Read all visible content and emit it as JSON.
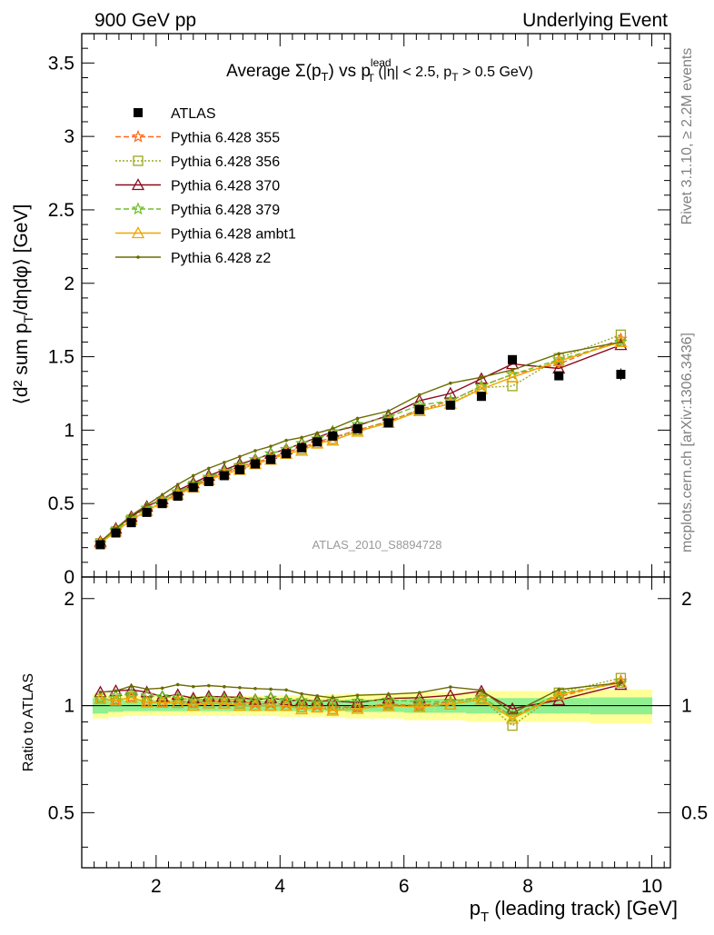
{
  "header": {
    "left": "900 GeV pp",
    "right": "Underlying Event"
  },
  "side_labels": {
    "rivet": "Rivet 3.1.10, ≥ 2.2M events",
    "mcplots": "mcplots.cern.ch [arXiv:1306.3436]"
  },
  "analysis_label": "ATLAS_2010_S8894728",
  "colors": {
    "data": "#000000",
    "p355": "#ff6a1a",
    "p356": "#9aa81a",
    "p370": "#8b0a1e",
    "p379": "#6fbf2a",
    "ambt1": "#f2a400",
    "z2": "#6b6b00",
    "band_inner": "#90f090",
    "band_outer": "#ffff99"
  },
  "chart_data": {
    "type": "line",
    "title_parts": {
      "main": "Average Σ(p",
      "sub_T": "T",
      "mid": ") vs p",
      "sup_lead": "lead",
      "tail": " (|η| < 2.5, p",
      "tail_sub": "T",
      "tail_end": " > 0.5 GeV)"
    },
    "ylabel_main": "⟨d² sum p",
    "ylabel_sub": "T",
    "ylabel_end": "/dηdφ⟩ [GeV]",
    "ylabel_ratio": "Ratio to ATLAS",
    "xlabel_main": "p",
    "xlabel_sub": "T",
    "xlabel_end": " (leading track) [GeV]",
    "xlim": [
      0.8,
      10.3
    ],
    "ylim_main": [
      0,
      3.7
    ],
    "ylim_ratio": [
      0.35,
      2.3
    ],
    "xticks": [
      "2",
      "4",
      "6",
      "8",
      "10"
    ],
    "yticks_main": [
      "0",
      "0.5",
      "1",
      "1.5",
      "2",
      "2.5",
      "3",
      "3.5"
    ],
    "yticks_ratio": [
      "0.5",
      "1",
      "2"
    ],
    "x": [
      1.1,
      1.35,
      1.6,
      1.85,
      2.1,
      2.35,
      2.6,
      2.85,
      3.1,
      3.35,
      3.6,
      3.85,
      4.1,
      4.35,
      4.6,
      4.85,
      5.25,
      5.75,
      6.25,
      6.75,
      7.25,
      7.75,
      8.5,
      9.5
    ],
    "data": {
      "name": "ATLAS",
      "values": [
        0.22,
        0.3,
        0.37,
        0.44,
        0.5,
        0.55,
        0.61,
        0.65,
        0.69,
        0.73,
        0.77,
        0.8,
        0.84,
        0.88,
        0.92,
        0.96,
        1.01,
        1.05,
        1.14,
        1.17,
        1.23,
        1.48,
        1.37,
        1.38
      ],
      "errors": [
        0.01,
        0.01,
        0.01,
        0.01,
        0.01,
        0.01,
        0.01,
        0.01,
        0.01,
        0.01,
        0.01,
        0.01,
        0.01,
        0.01,
        0.01,
        0.01,
        0.015,
        0.015,
        0.02,
        0.02,
        0.025,
        0.03,
        0.03,
        0.04
      ],
      "band_inner": [
        0.05,
        0.04,
        0.035,
        0.035,
        0.035,
        0.035,
        0.035,
        0.035,
        0.035,
        0.035,
        0.035,
        0.035,
        0.035,
        0.035,
        0.035,
        0.035,
        0.04,
        0.04,
        0.045,
        0.045,
        0.05,
        0.05,
        0.05,
        0.055
      ],
      "band_outer": [
        0.08,
        0.07,
        0.065,
        0.065,
        0.065,
        0.065,
        0.065,
        0.065,
        0.065,
        0.065,
        0.065,
        0.065,
        0.07,
        0.07,
        0.07,
        0.075,
        0.08,
        0.08,
        0.09,
        0.09,
        0.1,
        0.1,
        0.1,
        0.11
      ]
    },
    "series": [
      {
        "name": "Pythia 6.428 355",
        "key": "p355",
        "dash": "6,3",
        "marker": "star",
        "values": [
          0.23,
          0.31,
          0.39,
          0.45,
          0.51,
          0.57,
          0.62,
          0.67,
          0.71,
          0.75,
          0.78,
          0.81,
          0.85,
          0.88,
          0.92,
          0.95,
          1.0,
          1.06,
          1.14,
          1.2,
          1.3,
          1.38,
          1.45,
          1.62
        ]
      },
      {
        "name": "Pythia 6.428 356",
        "key": "p356",
        "dash": "2,2",
        "marker": "square-open",
        "values": [
          0.23,
          0.31,
          0.39,
          0.45,
          0.51,
          0.56,
          0.62,
          0.66,
          0.7,
          0.74,
          0.77,
          0.8,
          0.84,
          0.87,
          0.91,
          0.94,
          1.0,
          1.06,
          1.14,
          1.18,
          1.29,
          1.3,
          1.49,
          1.65
        ]
      },
      {
        "name": "Pythia 6.428 370",
        "key": "p370",
        "dash": "",
        "marker": "triangle-open",
        "values": [
          0.24,
          0.33,
          0.41,
          0.48,
          0.53,
          0.59,
          0.64,
          0.69,
          0.73,
          0.77,
          0.8,
          0.84,
          0.87,
          0.91,
          0.95,
          0.99,
          1.03,
          1.1,
          1.2,
          1.25,
          1.35,
          1.45,
          1.42,
          1.58
        ]
      },
      {
        "name": "Pythia 6.428 379",
        "key": "p379",
        "dash": "6,3",
        "marker": "star",
        "values": [
          0.23,
          0.32,
          0.4,
          0.47,
          0.53,
          0.58,
          0.63,
          0.68,
          0.72,
          0.76,
          0.8,
          0.84,
          0.87,
          0.91,
          0.94,
          0.99,
          1.04,
          1.09,
          1.17,
          1.2,
          1.3,
          1.38,
          1.48,
          1.6
        ]
      },
      {
        "name": "Pythia 6.428 ambt1",
        "key": "ambt1",
        "dash": "",
        "marker": "triangle-open",
        "values": [
          0.23,
          0.31,
          0.39,
          0.45,
          0.51,
          0.56,
          0.61,
          0.66,
          0.7,
          0.73,
          0.77,
          0.8,
          0.84,
          0.86,
          0.91,
          0.93,
          0.99,
          1.05,
          1.13,
          1.18,
          1.28,
          1.36,
          1.47,
          1.6
        ]
      },
      {
        "name": "Pythia 6.428 z2",
        "key": "z2",
        "dash": "",
        "marker": "dot",
        "values": [
          0.24,
          0.33,
          0.42,
          0.49,
          0.56,
          0.63,
          0.69,
          0.74,
          0.78,
          0.82,
          0.86,
          0.89,
          0.93,
          0.95,
          0.98,
          1.01,
          1.08,
          1.13,
          1.24,
          1.32,
          1.36,
          1.41,
          1.52,
          1.6
        ]
      }
    ],
    "legend": [
      "ATLAS",
      "Pythia 6.428 355",
      "Pythia 6.428 356",
      "Pythia 6.428 370",
      "Pythia 6.428 379",
      "Pythia 6.428 ambt1",
      "Pythia 6.428 z2"
    ],
    "legend_position": "top-left"
  }
}
